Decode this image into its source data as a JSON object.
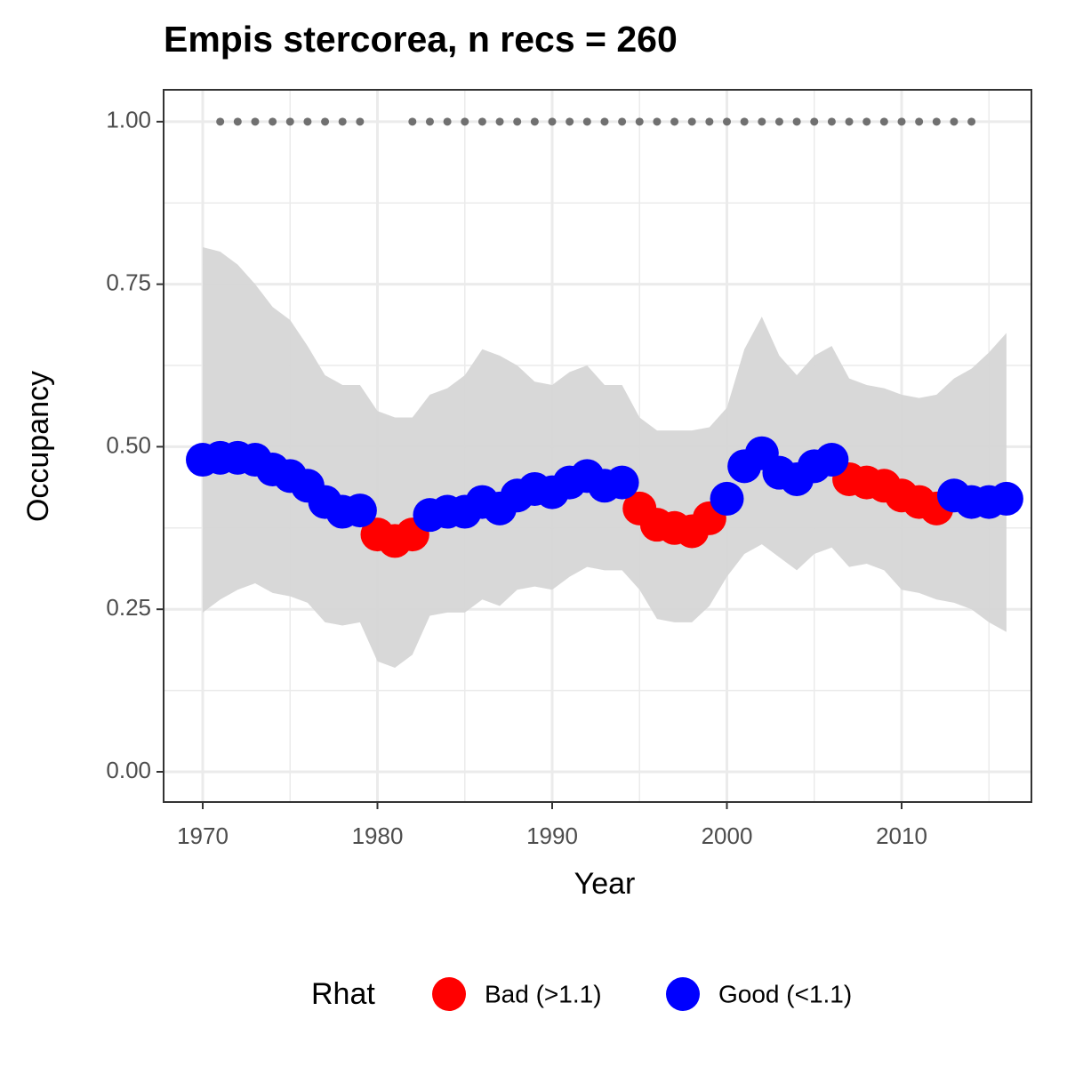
{
  "chart_data": {
    "type": "occupancy",
    "title": "Empis stercorea, n recs = 260",
    "x_label": "Year",
    "y_label": "Occupancy",
    "legend_title": "Rhat",
    "x": [
      1970,
      1971,
      1972,
      1973,
      1974,
      1975,
      1976,
      1977,
      1978,
      1979,
      1980,
      1981,
      1982,
      1983,
      1984,
      1985,
      1986,
      1987,
      1988,
      1989,
      1990,
      1991,
      1992,
      1993,
      1994,
      1995,
      1996,
      1997,
      1998,
      1999,
      2000,
      2001,
      2002,
      2003,
      2004,
      2005,
      2006,
      2007,
      2008,
      2009,
      2010,
      2011,
      2012,
      2013,
      2014,
      2015,
      2016
    ],
    "ribbon": {
      "color": "#d6d6d6",
      "upper": [
        0.807,
        0.8,
        0.78,
        0.75,
        0.715,
        0.695,
        0.655,
        0.61,
        0.595,
        0.595,
        0.555,
        0.545,
        0.545,
        0.58,
        0.59,
        0.61,
        0.65,
        0.64,
        0.625,
        0.6,
        0.595,
        0.615,
        0.625,
        0.595,
        0.595,
        0.545,
        0.525,
        0.525,
        0.525,
        0.53,
        0.56,
        0.65,
        0.7,
        0.64,
        0.61,
        0.64,
        0.655,
        0.605,
        0.595,
        0.59,
        0.58,
        0.575,
        0.58,
        0.605,
        0.62,
        0.645,
        0.675
      ],
      "lower": [
        0.245,
        0.265,
        0.28,
        0.29,
        0.275,
        0.27,
        0.26,
        0.23,
        0.225,
        0.23,
        0.17,
        0.16,
        0.18,
        0.24,
        0.245,
        0.245,
        0.265,
        0.255,
        0.28,
        0.285,
        0.28,
        0.3,
        0.315,
        0.31,
        0.31,
        0.28,
        0.235,
        0.23,
        0.23,
        0.255,
        0.3,
        0.335,
        0.35,
        0.33,
        0.31,
        0.335,
        0.345,
        0.315,
        0.32,
        0.31,
        0.28,
        0.275,
        0.265,
        0.26,
        0.25,
        0.23,
        0.215
      ]
    },
    "series": [
      {
        "name": "Bad (>1.1)",
        "color": "#ff0000",
        "x": [
          1980,
          1981,
          1982,
          1995,
          1996,
          1997,
          1998,
          1999,
          2007,
          2008,
          2009,
          2010,
          2011,
          2012
        ],
        "values": [
          0.365,
          0.355,
          0.365,
          0.405,
          0.38,
          0.375,
          0.37,
          0.39,
          0.45,
          0.445,
          0.44,
          0.425,
          0.415,
          0.405
        ]
      },
      {
        "name": "Good (<1.1)",
        "color": "#0000ff",
        "x": [
          1970,
          1971,
          1972,
          1973,
          1974,
          1975,
          1976,
          1977,
          1978,
          1979,
          1983,
          1984,
          1985,
          1986,
          1987,
          1988,
          1989,
          1990,
          1991,
          1992,
          1993,
          1994,
          2000,
          2001,
          2002,
          2003,
          2004,
          2005,
          2006,
          2013,
          2014,
          2015,
          2016
        ],
        "values": [
          0.48,
          0.483,
          0.483,
          0.48,
          0.465,
          0.455,
          0.44,
          0.415,
          0.4,
          0.402,
          0.395,
          0.4,
          0.4,
          0.415,
          0.405,
          0.425,
          0.435,
          0.43,
          0.445,
          0.455,
          0.44,
          0.445,
          0.42,
          0.47,
          0.49,
          0.46,
          0.45,
          0.47,
          0.48,
          0.425,
          0.415,
          0.415,
          0.42
        ]
      }
    ],
    "records": {
      "color": "#707070",
      "x": [
        1971,
        1972,
        1973,
        1974,
        1975,
        1976,
        1977,
        1978,
        1979,
        1982,
        1983,
        1984,
        1985,
        1986,
        1987,
        1988,
        1989,
        1990,
        1991,
        1992,
        1993,
        1994,
        1995,
        1996,
        1997,
        1998,
        1999,
        2000,
        2001,
        2002,
        2003,
        2004,
        2005,
        2006,
        2007,
        2008,
        2009,
        2010,
        2011,
        2012,
        2013,
        2014
      ],
      "values": [
        1,
        1,
        1,
        1,
        1,
        1,
        1,
        1,
        1,
        1,
        1,
        1,
        1,
        1,
        1,
        1,
        1,
        1,
        1,
        1,
        1,
        1,
        1,
        1,
        1,
        1,
        1,
        1,
        1,
        1,
        1,
        1,
        1,
        1,
        1,
        1,
        1,
        1,
        1,
        1,
        1,
        1
      ]
    },
    "xlim": [
      1967.76,
      2017.43
    ],
    "ylim": [
      -0.0465,
      1.049
    ],
    "xticks": [
      1970,
      1980,
      1990,
      2000,
      2010
    ],
    "yticks": [
      {
        "value": 0,
        "label": "0.00"
      },
      {
        "value": 0.25,
        "label": "0.25"
      },
      {
        "value": 0.5,
        "label": "0.50"
      },
      {
        "value": 0.75,
        "label": "0.75"
      },
      {
        "value": 1,
        "label": "1.00"
      }
    ],
    "grid": true
  }
}
